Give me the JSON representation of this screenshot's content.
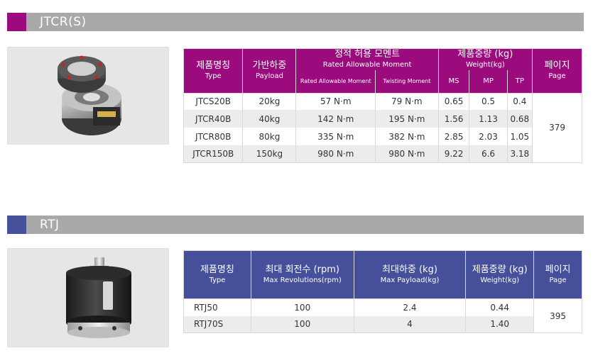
{
  "colors": {
    "jtcr_accent": "#9c0b7e",
    "jtcr_header": "#9c0b7e",
    "rtj_accent": "#46509a",
    "rtj_header": "#46509a",
    "bar": "#a9a9a9"
  },
  "sections": {
    "jtcr": {
      "title": "JTCR(S)",
      "header": {
        "type_ko": "제품명칭",
        "type_en": "Type",
        "payload_ko": "가반하중",
        "payload_en": "Payload",
        "moment_ko": "정적 허용 모멘트",
        "moment_en": "Rated Allowable Moment",
        "rated_moment_en": "Rated Allowable Moment",
        "twisting_moment_en": "Twisting Moment",
        "weight_ko": "제품중량 (kg)",
        "weight_en": "Weight(kg)",
        "ms": "MS",
        "mp": "MP",
        "tp": "TP",
        "page_ko": "페이지",
        "page_en": "Page"
      },
      "rows": [
        {
          "type": "JTCS20B",
          "payload": "20kg",
          "rated": "57 N·m",
          "twisting": "79 N·m",
          "ms": "0.65",
          "mp": "0.5",
          "tp": "0.4"
        },
        {
          "type": "JTCR40B",
          "payload": "40kg",
          "rated": "142 N·m",
          "twisting": "195 N·m",
          "ms": "1.56",
          "mp": "1.13",
          "tp": "0.68"
        },
        {
          "type": "JTCR80B",
          "payload": "80kg",
          "rated": "335 N·m",
          "twisting": "382 N·m",
          "ms": "2.85",
          "mp": "2.03",
          "tp": "1.05"
        },
        {
          "type": "JTCR150B",
          "payload": "150kg",
          "rated": "980 N·m",
          "twisting": "980 N·m",
          "ms": "9.22",
          "mp": "6.6",
          "tp": "3.18"
        }
      ],
      "page": "379"
    },
    "rtj": {
      "title": "RTJ",
      "header": {
        "type_ko": "제품명칭",
        "type_en": "Type",
        "rev_ko": "최대 회전수 (rpm)",
        "rev_en": "Max Revolutions(rpm)",
        "payload_ko": "최대하중 (kg)",
        "payload_en": "Max Payload(kg)",
        "weight_ko": "제품중량 (kg)",
        "weight_en": "Weight(kg)",
        "page_ko": "페이지",
        "page_en": "Page"
      },
      "rows": [
        {
          "type": "RTJ50",
          "rev": "100",
          "payload": "2.4",
          "weight": "0.44"
        },
        {
          "type": "RTJ70S",
          "rev": "100",
          "payload": "4",
          "weight": "1.40"
        }
      ],
      "page": "395"
    }
  }
}
